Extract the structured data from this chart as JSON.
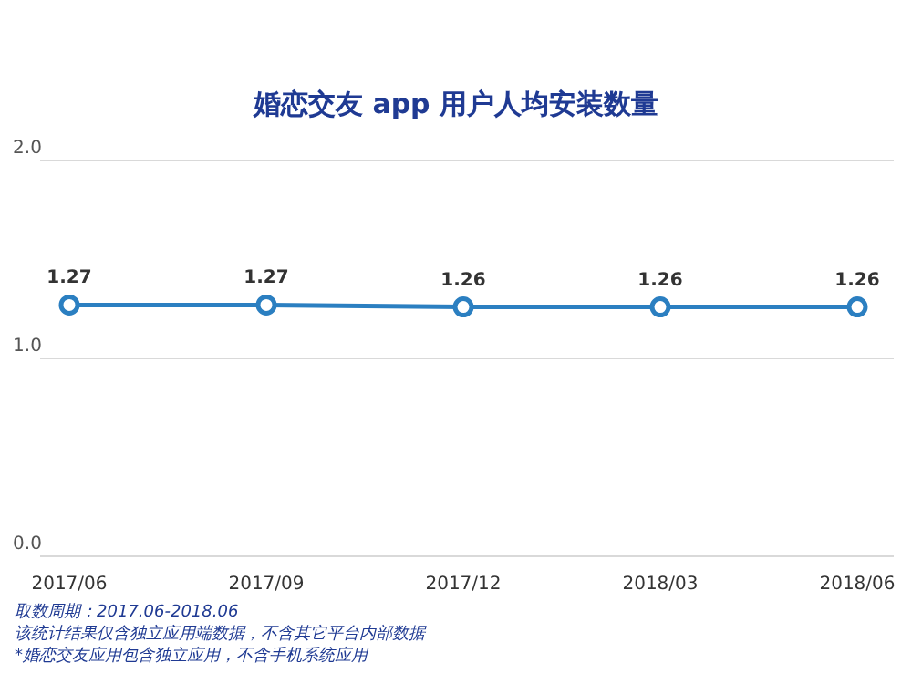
{
  "chart_data": {
    "type": "line",
    "title": "婚恋交友 app 用户人均安装数量",
    "categories": [
      "2017/06",
      "2017/09",
      "2017/12",
      "2018/03",
      "2018/06"
    ],
    "series": [
      {
        "color": "#2b7fc1",
        "values": [
          1.27,
          1.27,
          1.26,
          1.26,
          1.26
        ]
      }
    ],
    "ylim": [
      0,
      2
    ],
    "yticks": [
      {
        "value": 0,
        "label": "0.0"
      },
      {
        "value": 1,
        "label": "1.0"
      },
      {
        "value": 2,
        "label": "2.0"
      }
    ],
    "grid": "y",
    "marker": "circle",
    "data_labels": true,
    "annotations": [
      "取数周期：2017.06-2018.06",
      "该统计结果仅含独立应用端数据，不含其它平台内部数据",
      "*婚恋交友应用包含独立应用，不含手机系统应用"
    ]
  }
}
